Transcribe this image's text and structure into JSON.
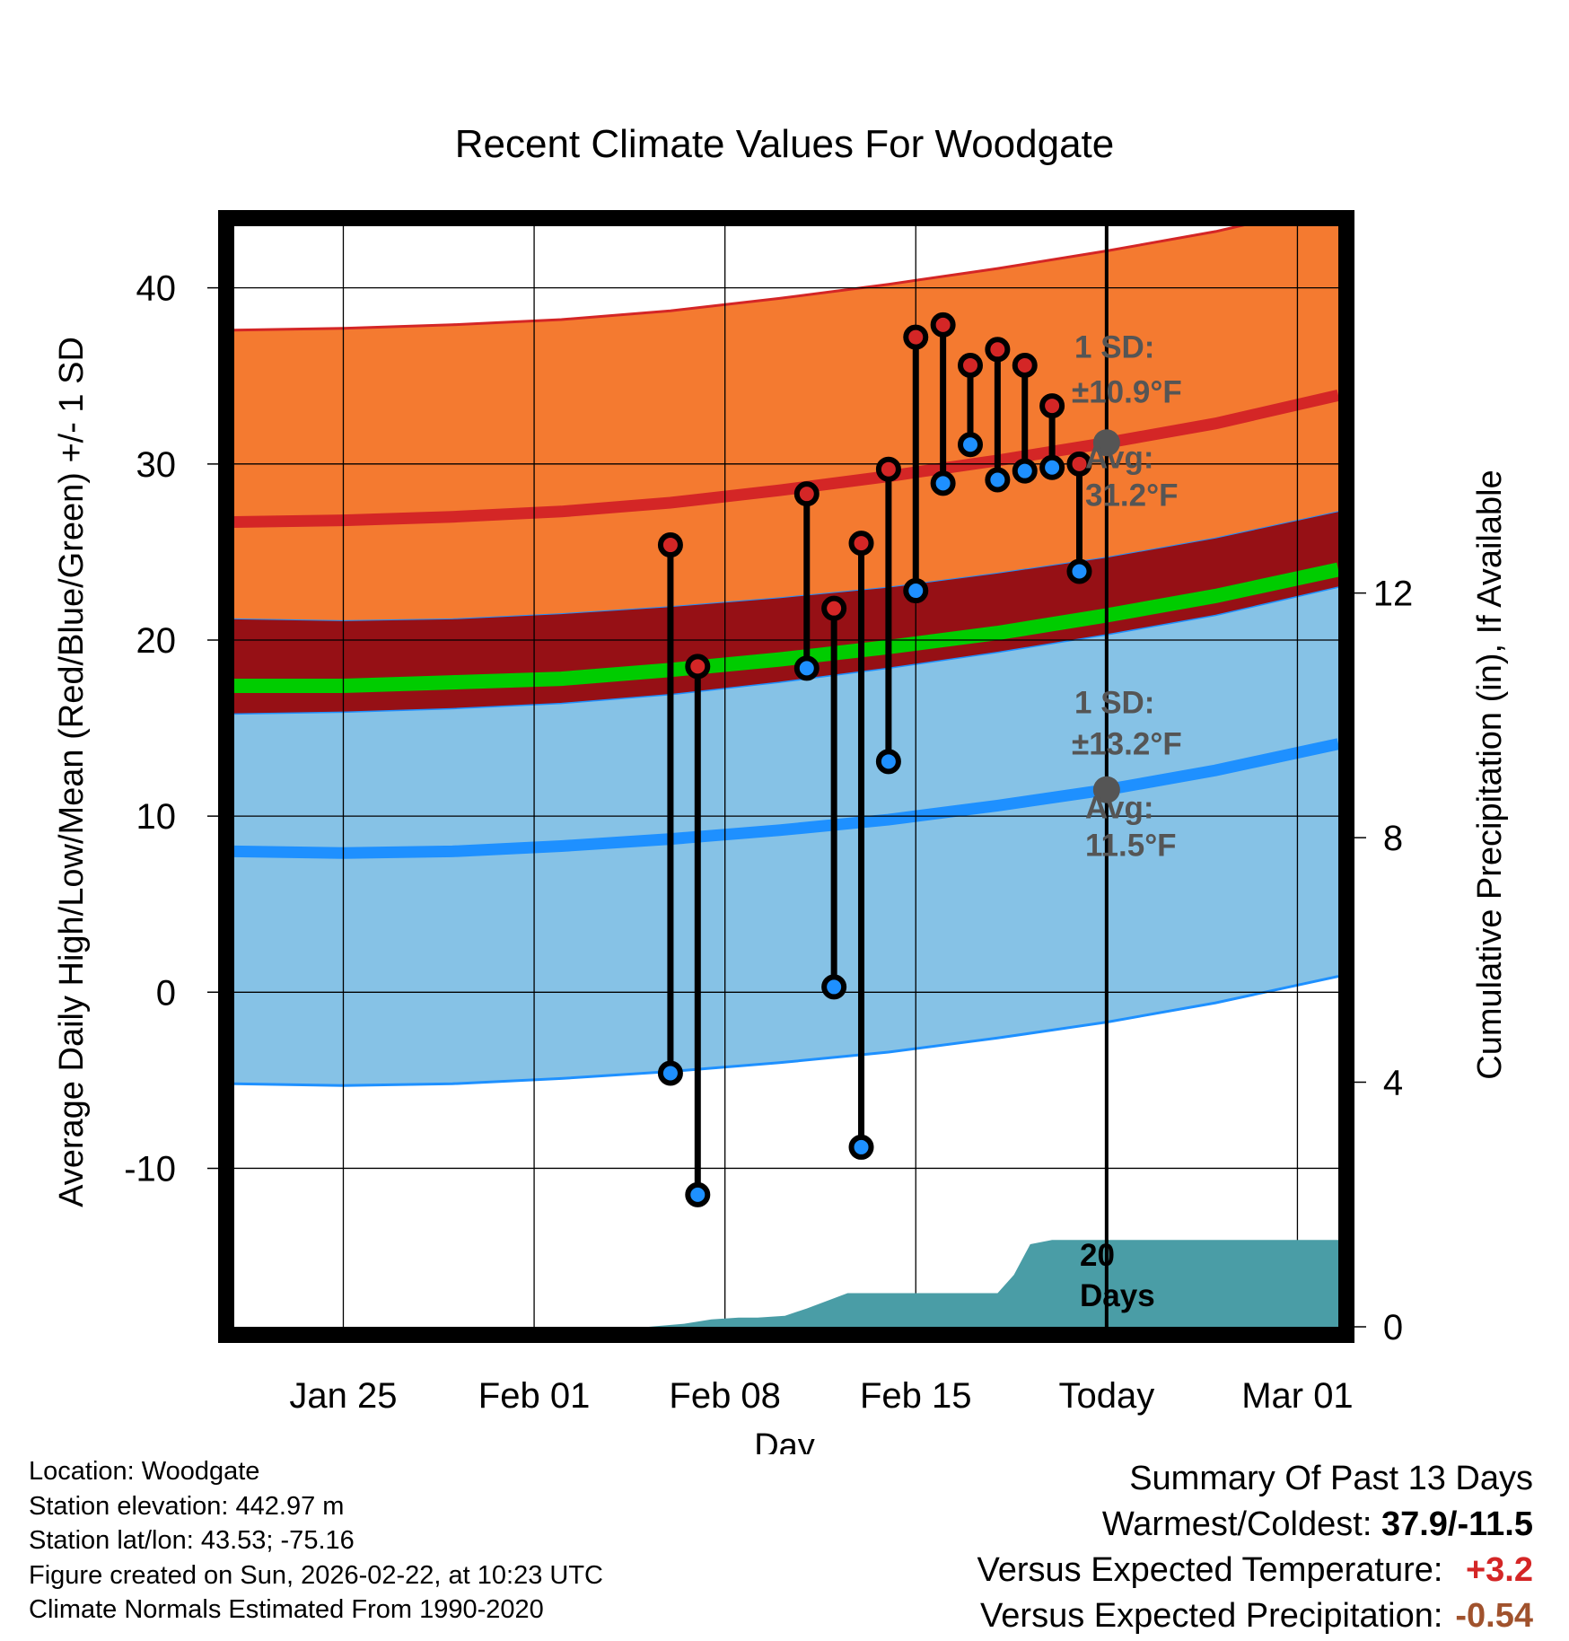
{
  "colors": {
    "high_band": "#f47a30",
    "high_line": "#d42626",
    "mean_band": "#961015",
    "mean_line": "#00cc00",
    "low_band": "#86c2e6",
    "low_line": "#1e90ff",
    "precip": "#4a9da6",
    "annotation": "#555555",
    "positive": "#d42626",
    "negative": "#a0522d"
  },
  "chart_data": {
    "type": "line",
    "title": "Recent Climate Values For Woodgate",
    "xlabel": "Day",
    "ylabel": "Average Daily High/Low/Mean (Red/Blue/Green) +/- 1 SD",
    "y2label": "Cumulative Precipitation (in), If Available",
    "x_start": "Jan 21",
    "x_range_days": [
      0,
      40.5
    ],
    "today_day": 32,
    "ylim": [
      -19,
      43.5
    ],
    "y_ticks": [
      -10,
      0,
      10,
      20,
      30,
      40
    ],
    "y_tick_labels": [
      "-10",
      "0",
      "10",
      "20",
      "30",
      "40"
    ],
    "y2lim": [
      0,
      18
    ],
    "y2_ticks": [
      0,
      4,
      8,
      12
    ],
    "y2_tick_labels": [
      "0",
      "4",
      "8",
      "12"
    ],
    "x_ticks": [
      4,
      11,
      18,
      25,
      32,
      39
    ],
    "x_tick_labels": [
      "Jan 25",
      "Feb 01",
      "Feb 08",
      "Feb 15",
      "Today",
      "Mar 01"
    ],
    "grid": true,
    "normals": {
      "x": [
        0,
        4,
        8,
        12,
        16,
        20,
        24,
        28,
        32,
        36,
        40.5
      ],
      "high_avg": [
        26.7,
        26.8,
        27.0,
        27.3,
        27.8,
        28.5,
        29.3,
        30.2,
        31.2,
        32.3,
        33.9
      ],
      "high_sd": 10.9,
      "low_avg": [
        8.0,
        7.9,
        8.0,
        8.3,
        8.7,
        9.2,
        9.8,
        10.6,
        11.5,
        12.6,
        14.1
      ],
      "low_sd": 13.2,
      "mean_avg": [
        17.4,
        17.4,
        17.6,
        17.8,
        18.3,
        18.9,
        19.6,
        20.4,
        21.4,
        22.5,
        24.0
      ]
    },
    "observations": {
      "day": [
        16,
        17,
        21,
        22,
        23,
        24,
        25,
        26,
        27,
        28,
        29,
        30,
        31
      ],
      "high": [
        25.4,
        18.5,
        28.3,
        21.8,
        25.5,
        29.7,
        37.2,
        37.9,
        35.6,
        36.5,
        35.6,
        33.3,
        30.0
      ],
      "low": [
        -4.6,
        -11.5,
        18.4,
        0.3,
        -8.8,
        13.1,
        22.8,
        28.9,
        31.1,
        29.1,
        29.6,
        29.8,
        23.9
      ]
    },
    "precipitation": {
      "day": [
        15.2,
        16.5,
        17.5,
        18.5,
        19.2,
        20.2,
        21,
        22.5,
        25,
        28,
        28.6,
        29.2,
        30,
        32,
        40.5
      ],
      "cumulative_in": [
        0,
        0.05,
        0.12,
        0.15,
        0.15,
        0.18,
        0.3,
        0.55,
        0.55,
        0.55,
        0.85,
        1.35,
        1.42,
        1.42,
        1.42
      ]
    },
    "annotations": {
      "high_sd_label": "1 SD:",
      "high_sd_value": "±10.9°F",
      "high_avg_label": "Avg:",
      "high_avg_value": "31.2°F",
      "low_sd_label": "1 SD:",
      "low_sd_value": "±13.2°F",
      "low_avg_label": "Avg:",
      "low_avg_value": "11.5°F",
      "days_number": "20",
      "days_label": "Days"
    }
  },
  "footer": {
    "location": "Location: Woodgate",
    "elevation": "Station elevation: 442.97 m",
    "latlon": "Station lat/lon: 43.53; -75.16",
    "created": "Figure created on Sun, 2026-02-22, at 10:23 UTC",
    "normals": "Climate Normals Estimated From 1990-2020"
  },
  "summary": {
    "heading": "Summary Of Past 13 Days",
    "warmest_label": "Warmest/Coldest:",
    "warmest_value": "37.9/-11.5",
    "temp_label": "Versus Expected Temperature:",
    "temp_value": "+3.2",
    "precip_label": "Versus Expected Precipitation:",
    "precip_value": "-0.54"
  }
}
